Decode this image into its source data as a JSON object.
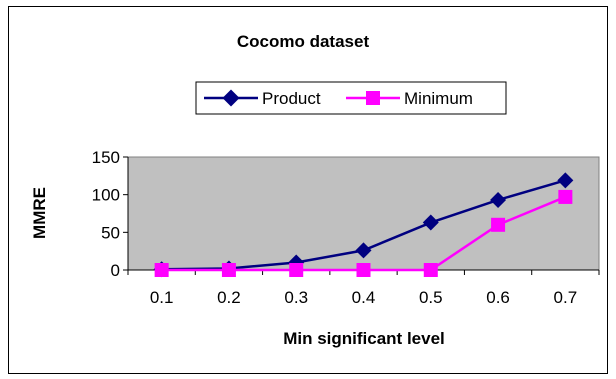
{
  "chart_data": {
    "type": "line",
    "title": "Cocomo dataset",
    "xlabel": "Min significant level",
    "ylabel": "MMRE",
    "categories": [
      "0.1",
      "0.2",
      "0.3",
      "0.4",
      "0.5",
      "0.6",
      "0.7"
    ],
    "ylim": [
      0,
      150
    ],
    "yticks": [
      0,
      50,
      100,
      150
    ],
    "grid": false,
    "plot_background": "#c0c0c0",
    "legend_position": "top-center",
    "series": [
      {
        "name": "Product",
        "color": "#000080",
        "marker": "diamond",
        "values": [
          1,
          2,
          10,
          26,
          63,
          93,
          119
        ]
      },
      {
        "name": "Minimum",
        "color": "#ff00ff",
        "marker": "square",
        "values": [
          0,
          0,
          0,
          0,
          0,
          60,
          97
        ]
      }
    ]
  }
}
